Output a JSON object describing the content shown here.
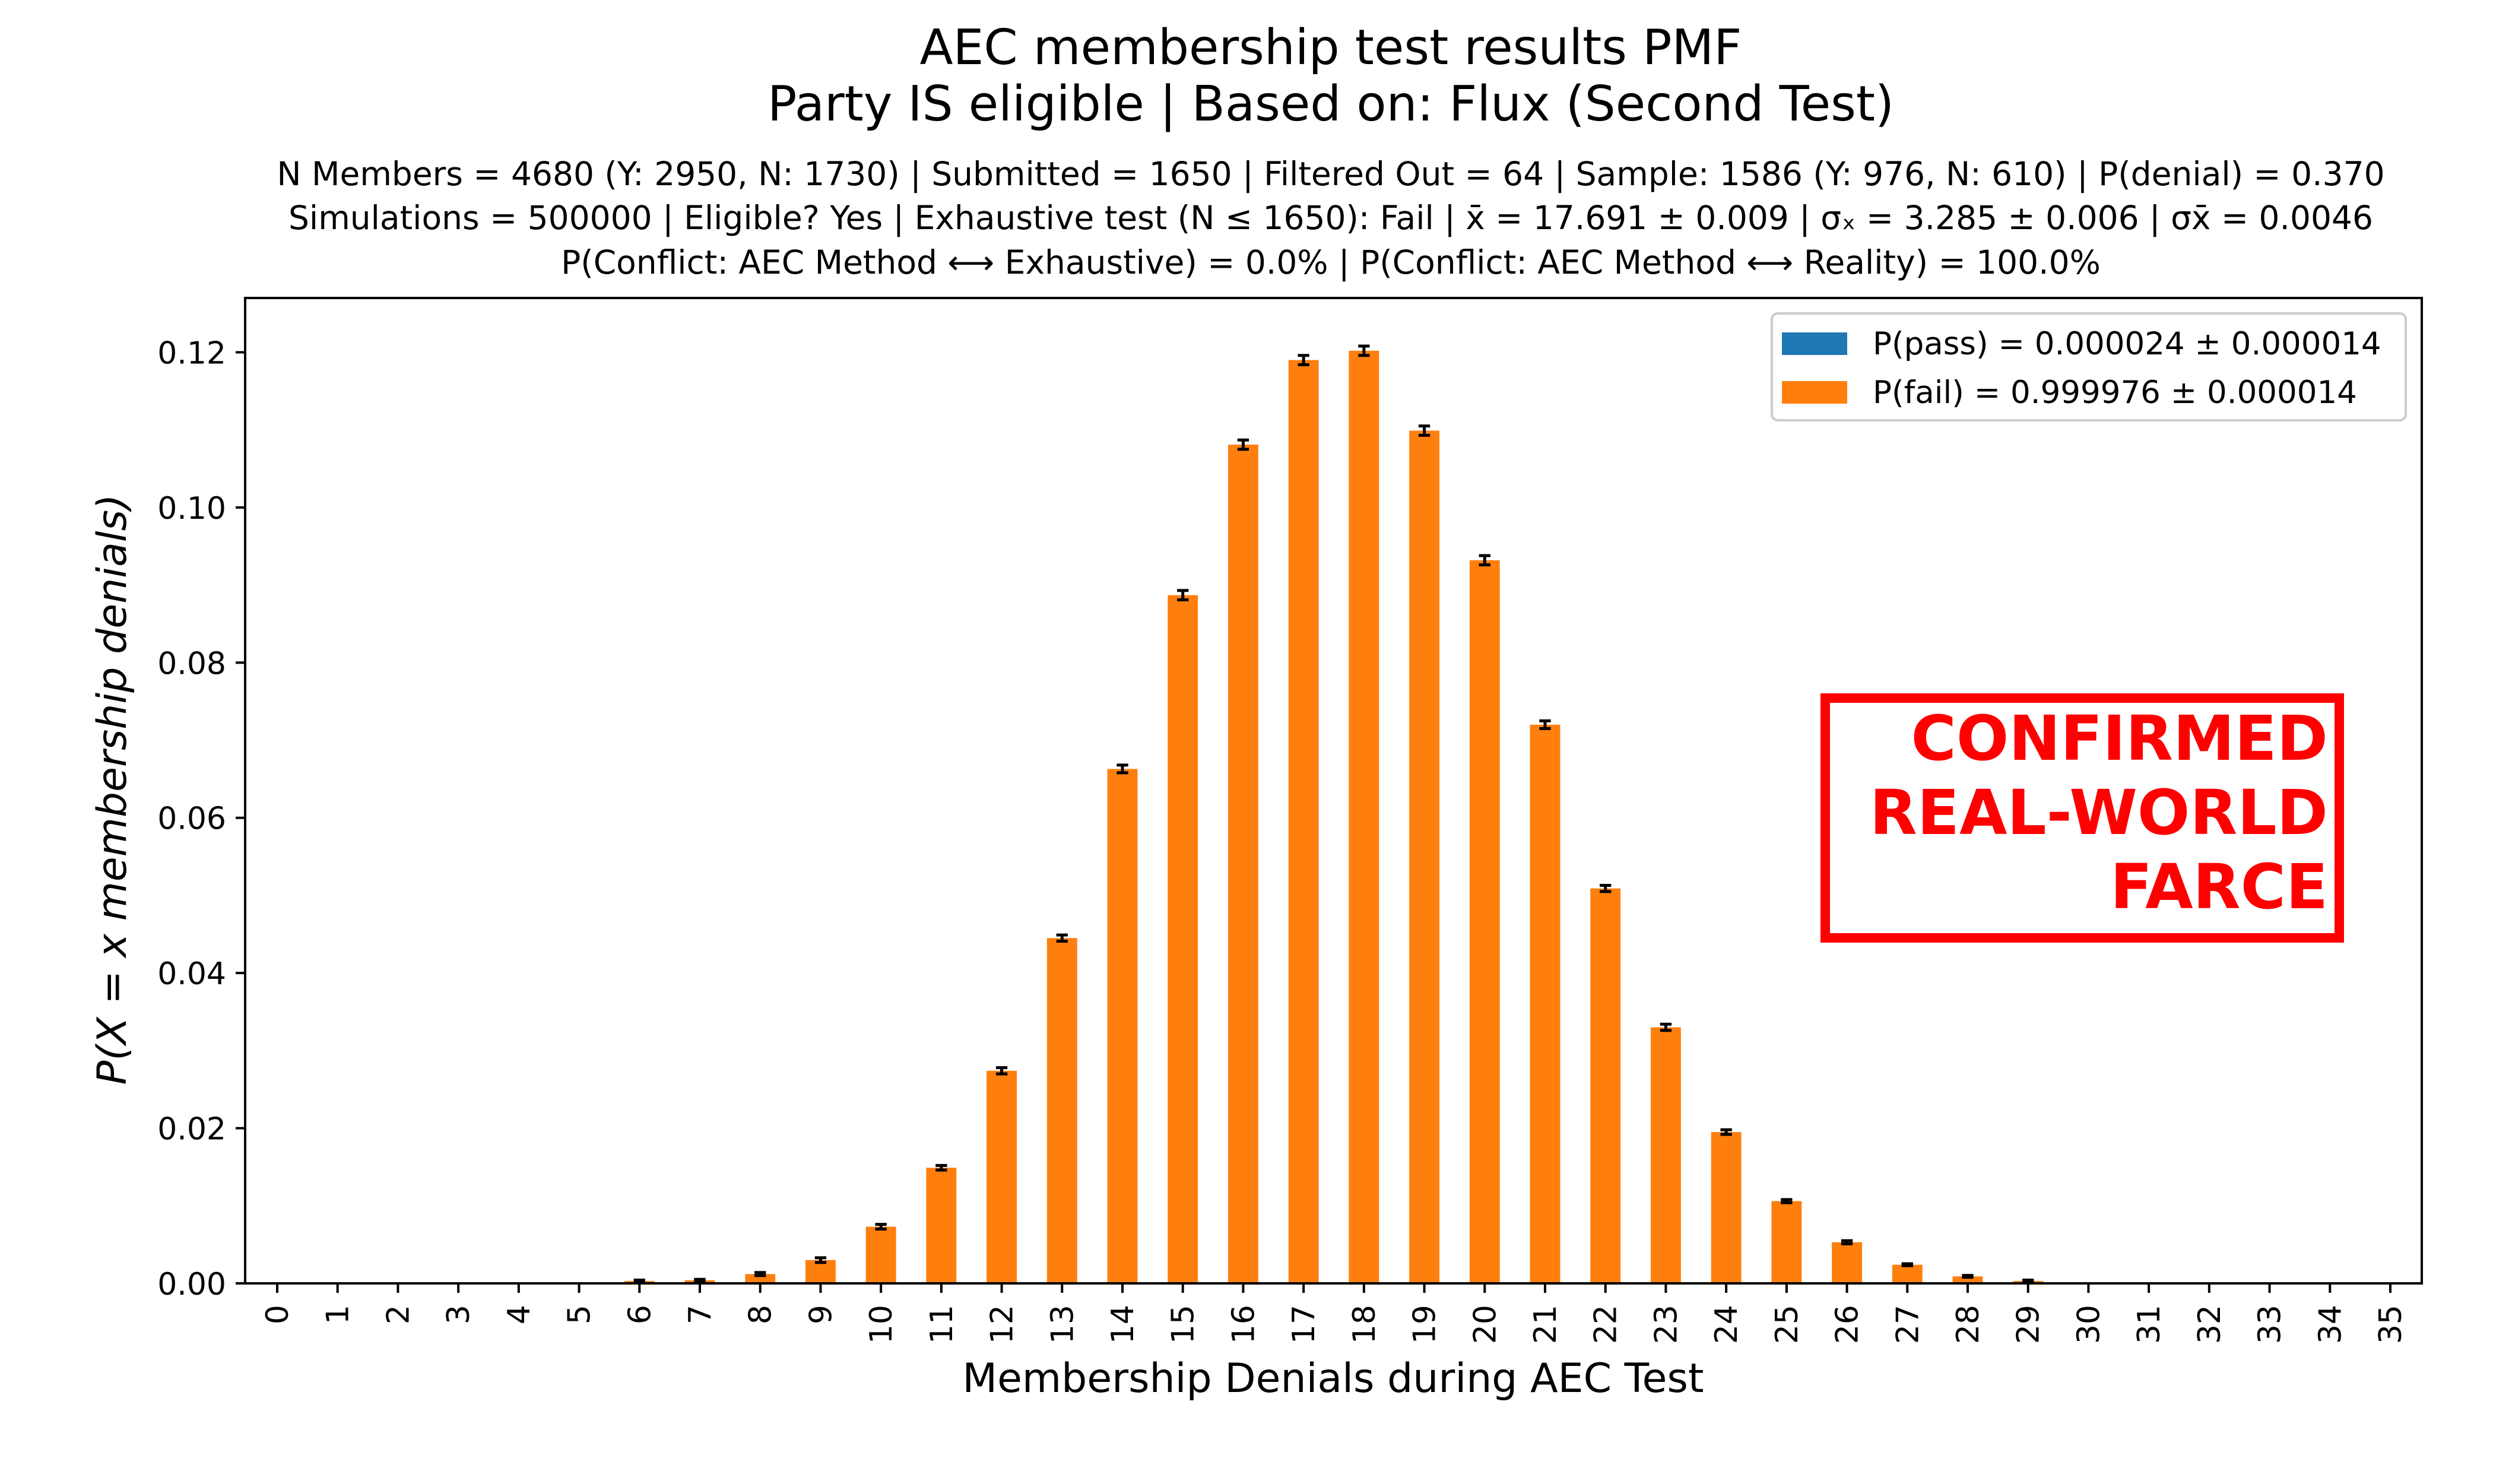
{
  "chart_data": {
    "type": "bar",
    "title": "AEC membership test results PMF",
    "subtitle": "Party IS eligible | Based on: Flux (Second Test)",
    "info_lines": [
      "N Members = 4680 (Y: 2950, N: 1730) | Submitted = 1650 | Filtered Out = 64 | Sample: 1586 (Y: 976, N: 610) | P(denial) = 0.370",
      "Simulations = 500000 | Eligible? Yes | Exhaustive test (N ≤ 1650): Fail | x̄ = 17.691 ± 0.009 | σₓ = 3.285 ± 0.006 | σx̄ = 0.0046",
      "P(Conflict: AEC Method ⟷ Exhaustive) = 0.0% | P(Conflict: AEC Method ⟷ Reality) = 100.0%"
    ],
    "xlabel": "Membership Denials during AEC Test",
    "ylabel": "P(X = x membership denials)",
    "ylim": [
      0,
      0.127
    ],
    "yticks": [
      "0.00",
      "0.02",
      "0.04",
      "0.06",
      "0.08",
      "0.10",
      "0.12"
    ],
    "categories": [
      "0",
      "1",
      "2",
      "3",
      "4",
      "5",
      "6",
      "7",
      "8",
      "9",
      "10",
      "11",
      "12",
      "13",
      "14",
      "15",
      "16",
      "17",
      "18",
      "19",
      "20",
      "21",
      "22",
      "23",
      "24",
      "25",
      "26",
      "27",
      "28",
      "29",
      "30",
      "31",
      "32",
      "33",
      "34",
      "35"
    ],
    "series": [
      {
        "name": "P(pass) = 0.000024 ± 0.000014",
        "color": "#1f77b4",
        "values": [
          0,
          0,
          0,
          0,
          0,
          0,
          0,
          0,
          0,
          0,
          0,
          0,
          0,
          0,
          0,
          0,
          0,
          0,
          0,
          0,
          0,
          0,
          0,
          0,
          0,
          0,
          0,
          0,
          0,
          0,
          0,
          0,
          0,
          0,
          0,
          0
        ]
      },
      {
        "name": "P(fail) = 0.999976 ± 0.000014",
        "color": "#ff7f0e",
        "values": [
          0,
          0,
          0,
          1e-05,
          3e-05,
          0.0001,
          0.0003,
          0.0004,
          0.0012,
          0.003,
          0.0073,
          0.0149,
          0.0274,
          0.0445,
          0.0663,
          0.0887,
          0.1081,
          0.119,
          0.1202,
          0.1099,
          0.0932,
          0.072,
          0.0509,
          0.033,
          0.0195,
          0.0106,
          0.0053,
          0.0024,
          0.0009,
          0.0003,
          0.0001,
          3e-05,
          1e-05,
          0,
          0,
          0
        ]
      }
    ],
    "error_bars": [
      0,
      0,
      0,
      0,
      0,
      0,
      0,
      0.0001,
      0.0002,
      0.0003,
      0.0003,
      0.0003,
      0.0004,
      0.0004,
      0.0005,
      0.0006,
      0.0006,
      0.0006,
      0.0006,
      0.0006,
      0.0006,
      0.0005,
      0.0004,
      0.0004,
      0.0003,
      0.0002,
      0.0002,
      0.0001,
      0.0001,
      0,
      0,
      0,
      0,
      0,
      0,
      0
    ],
    "legend_position": "top-right",
    "stamp": {
      "lines": [
        "CONFIRMED",
        "REAL-WORLD",
        "FARCE"
      ],
      "color": "#ff0000"
    },
    "grid": false
  }
}
